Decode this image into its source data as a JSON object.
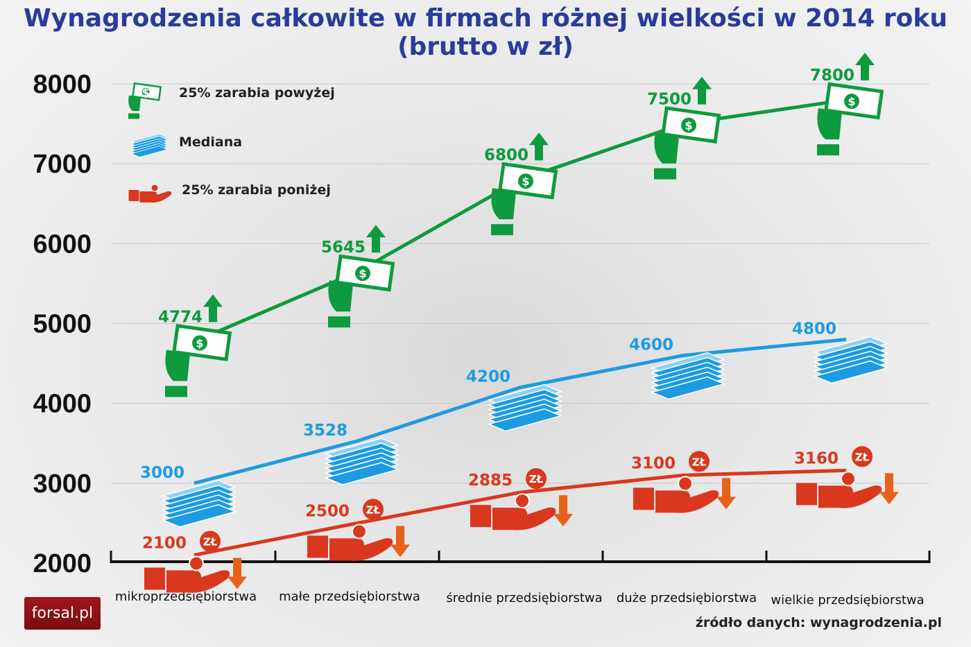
{
  "chart_data": {
    "type": "line",
    "title": "Wynagrodzenia całkowite w firmach różnej wielkości w 2014 roku",
    "subtitle": "(brutto w zł)",
    "categories": [
      "mikroprzedsiębiorstwa",
      "małe przedsiębiorstwa",
      "średnie przedsiębiorstwa",
      "duże przedsiębiorstwa",
      "wielkie przedsiębiorstwa"
    ],
    "yticks": [
      "2000",
      "3000",
      "4000",
      "5000",
      "6000",
      "7000",
      "8000"
    ],
    "ylim": [
      2000,
      8000
    ],
    "grid": true,
    "legend_placement": "top-left",
    "series": [
      {
        "name": "25% zarabia powyżej",
        "color": "#0e9a3e",
        "icon": "money-in-hand-icon",
        "values": [
          4774,
          5645,
          6800,
          7500,
          7800
        ]
      },
      {
        "name": "Mediana",
        "color": "#1e9be0",
        "icon": "banknote-stack-icon",
        "values": [
          3000,
          3528,
          4200,
          4600,
          4800
        ]
      },
      {
        "name": "25% zarabia poniżej",
        "color": "#d9381e",
        "icon": "coin-in-hand-icon",
        "values": [
          2100,
          2500,
          2885,
          3100,
          3160
        ]
      }
    ],
    "arrow_color_down": "#e8611a"
  },
  "coin_label": "zł",
  "logo": "forsal.pl",
  "source": "źródło danych: wynagrodzenia.pl"
}
